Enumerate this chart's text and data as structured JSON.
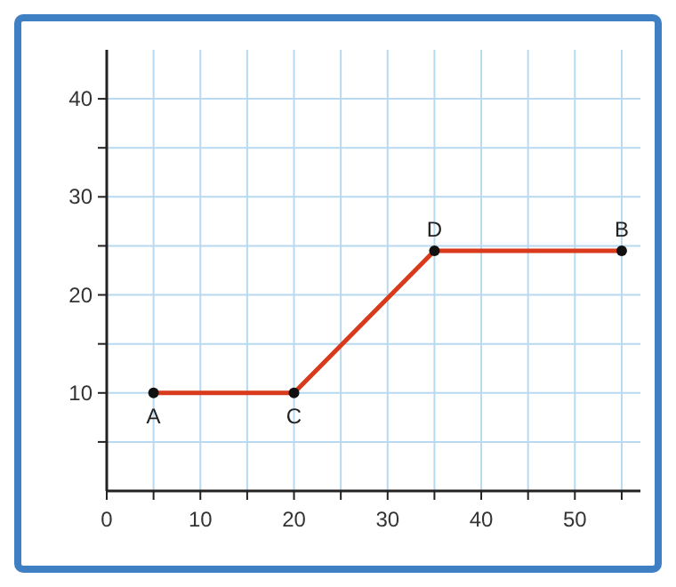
{
  "chart_data": {
    "type": "line",
    "x": [
      5,
      20,
      35,
      55
    ],
    "series": [
      {
        "color": "#d93a1c",
        "values": [
          10,
          10,
          24.5,
          24.5
        ]
      }
    ],
    "xlim": [
      0,
      57
    ],
    "ylim": [
      0,
      45
    ],
    "xticks": [
      0,
      {
        "value": 5,
        "label": null
      },
      10,
      {
        "value": 15,
        "label": null
      },
      20,
      {
        "value": 25,
        "label": null
      },
      30,
      {
        "value": 35,
        "label": null
      },
      40,
      {
        "value": 45,
        "label": null
      },
      50,
      {
        "value": 55,
        "label": null
      }
    ],
    "yticks": [
      {
        "value": 5,
        "label": null
      },
      10,
      {
        "value": 15,
        "label": null
      },
      20,
      {
        "value": 25,
        "label": null
      },
      30,
      {
        "value": 35,
        "label": null
      },
      40
    ],
    "grid": true,
    "marker": "circle",
    "line_style": "solid",
    "annotations": [
      {
        "text": "A",
        "x": 5,
        "y": 10
      },
      {
        "text": "C",
        "x": 20,
        "y": 10
      },
      {
        "text": "D",
        "x": 35,
        "y": 24.5
      },
      {
        "text": "B",
        "x": 55,
        "y": 24.5
      }
    ]
  }
}
